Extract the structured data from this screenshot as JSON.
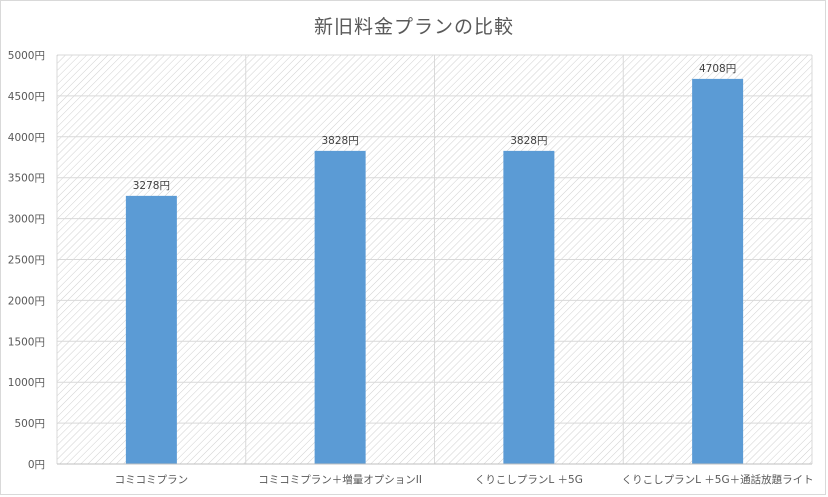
{
  "chart_data": {
    "type": "bar",
    "title": "新旧料金プランの比較",
    "xlabel": "",
    "ylabel": "",
    "categories": [
      "コミコミプラン",
      "コミコミプラン＋増量オプションII",
      "くりこしプランL ＋5G",
      "くりこしプランL ＋5G＋通話放題ライト"
    ],
    "values": [
      3278,
      3828,
      3828,
      4708
    ],
    "data_labels": [
      "3278円",
      "3828円",
      "3828円",
      "4708円"
    ],
    "ylim": [
      0,
      5000
    ],
    "yticks": [
      "0円",
      "500円",
      "1000円",
      "1500円",
      "2000円",
      "2500円",
      "3000円",
      "3500円",
      "4000円",
      "4500円",
      "5000円"
    ],
    "grid": true,
    "legend": "none",
    "colors": {
      "bar": "#5b9bd5",
      "grid": "#d9d9d9",
      "text": "#595959",
      "hatch": "#d0d0d0"
    }
  }
}
